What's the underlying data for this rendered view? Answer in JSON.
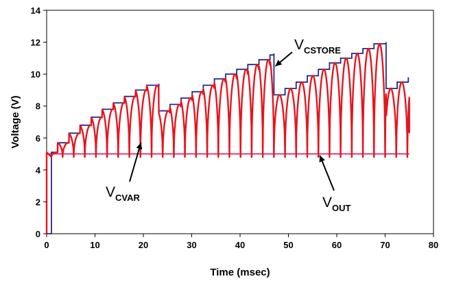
{
  "chart_data": {
    "type": "line",
    "xlabel": "Time (msec)",
    "ylabel": "Voltage (V)",
    "xlim": [
      0,
      80
    ],
    "ylim": [
      0,
      14
    ],
    "xticks": [
      "0",
      "10",
      "20",
      "30",
      "40",
      "50",
      "60",
      "70",
      "80"
    ],
    "yticks": [
      "0",
      "2",
      "4",
      "6",
      "8",
      "10",
      "12",
      "14"
    ],
    "grid": false,
    "legend": "none",
    "series": [
      {
        "name": "VCSTORE",
        "color": "#1f2a8c",
        "cycle_ms": 2.3,
        "resets": [
          {
            "t": 23.2,
            "from": 9.4,
            "to": 7.7
          },
          {
            "t": 47.0,
            "from": 11.3,
            "to": 8.7
          },
          {
            "t": 70.2,
            "from": 12.0,
            "to": 9.1
          }
        ],
        "x": [
          0,
          1,
          1,
          2.3,
          4.6,
          6.9,
          9.2,
          11.5,
          13.8,
          16.1,
          18.4,
          20.7,
          23.2,
          23.2,
          25.5,
          27.8,
          30.1,
          32.4,
          34.7,
          37.0,
          39.3,
          41.6,
          43.9,
          46.2,
          47.0,
          47.0,
          49.3,
          51.6,
          53.9,
          56.2,
          58.5,
          60.8,
          63.1,
          65.4,
          67.7,
          70.2,
          70.2,
          72.5,
          74.8
        ],
        "y": [
          0,
          0,
          5.1,
          5.7,
          6.3,
          6.8,
          7.3,
          7.8,
          8.2,
          8.6,
          9.0,
          9.3,
          9.4,
          7.7,
          8.1,
          8.5,
          8.9,
          9.3,
          9.7,
          10.0,
          10.3,
          10.6,
          10.9,
          11.2,
          11.3,
          8.7,
          9.1,
          9.5,
          9.9,
          10.3,
          10.7,
          11.0,
          11.3,
          11.6,
          11.9,
          12.0,
          9.1,
          9.5,
          9.8
        ]
      },
      {
        "name": "VCVAR",
        "color": "#e8141c",
        "waveform": "pulse train oscillating between VOUT and VCSTORE",
        "period_ms": 2.3,
        "min": 4.8,
        "x_start": 1,
        "x_end": 75
      },
      {
        "name": "VOUT",
        "color": "#d4146e",
        "x": [
          0,
          75
        ],
        "y": [
          5.0,
          5.0
        ]
      }
    ],
    "annotations": [
      {
        "main": "V",
        "sub": "CSTORE",
        "arrow_to": {
          "x": 47.3,
          "y": 10.5
        }
      },
      {
        "main": "V",
        "sub": "CVAR",
        "arrow_to": {
          "x": 19.5,
          "y": 5.7
        }
      },
      {
        "main": "V",
        "sub": "OUT",
        "arrow_to": {
          "x": 56.5,
          "y": 4.9
        }
      }
    ]
  }
}
